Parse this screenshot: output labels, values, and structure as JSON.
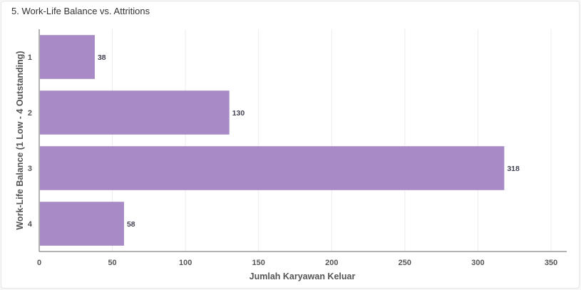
{
  "header": {
    "title": "5. Work-Life Balance vs. Attritions"
  },
  "chart_data": {
    "type": "bar",
    "orientation": "horizontal",
    "categories": [
      "1",
      "2",
      "3",
      "4"
    ],
    "values": [
      38,
      130,
      318,
      58
    ],
    "xlabel": "Jumlah Karyawan Keluar",
    "ylabel": "Work-Life Balance (1 Low - 4 Outstanding)",
    "xlim": [
      0,
      362
    ],
    "xticks": [
      0,
      50,
      100,
      150,
      200,
      250,
      300,
      350
    ],
    "grid": true,
    "bar_color": "#a78ac6"
  }
}
